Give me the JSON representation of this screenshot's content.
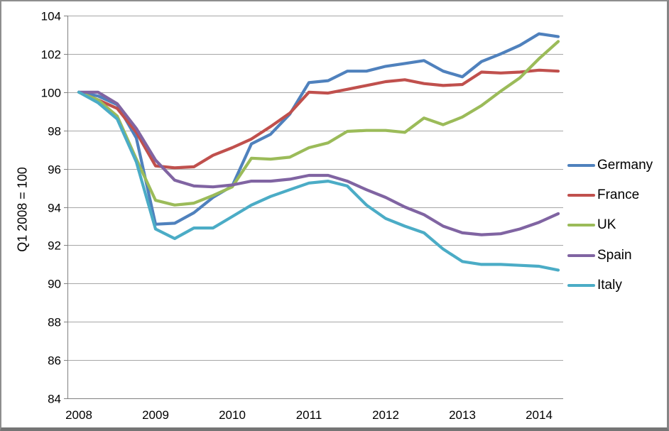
{
  "chart_data": {
    "type": "line",
    "title": "",
    "ylabel": "Q1 2008 = 100",
    "ylim": [
      84,
      104
    ],
    "y_ticks": [
      84,
      86,
      88,
      90,
      92,
      94,
      96,
      98,
      100,
      102,
      104
    ],
    "x_year_labels": [
      "2008",
      "2009",
      "2010",
      "2011",
      "2012",
      "2013",
      "2014"
    ],
    "grid": true,
    "legend_position": "right",
    "categories": [
      "2008 Q1",
      "2008 Q2",
      "2008 Q3",
      "2008 Q4",
      "2009 Q1",
      "2009 Q2",
      "2009 Q3",
      "2009 Q4",
      "2010 Q1",
      "2010 Q2",
      "2010 Q3",
      "2010 Q4",
      "2011 Q1",
      "2011 Q2",
      "2011 Q3",
      "2011 Q4",
      "2012 Q1",
      "2012 Q2",
      "2012 Q3",
      "2012 Q4",
      "2013 Q1",
      "2013 Q2",
      "2013 Q3",
      "2013 Q4",
      "2014 Q1",
      "2014 Q2"
    ],
    "series": [
      {
        "name": "Germany",
        "color": "#4F81BD",
        "values": [
          100,
          99.8,
          99.35,
          97.6,
          93.1,
          93.15,
          93.7,
          94.5,
          95.1,
          97.3,
          97.8,
          98.85,
          100.5,
          100.6,
          101.1,
          101.1,
          101.35,
          101.5,
          101.65,
          101.1,
          100.8,
          101.6,
          102.0,
          102.45,
          103.05,
          102.9
        ]
      },
      {
        "name": "France",
        "color": "#C0504D",
        "values": [
          100,
          99.6,
          99.15,
          97.9,
          96.15,
          96.05,
          96.1,
          96.7,
          97.1,
          97.55,
          98.2,
          98.9,
          100.0,
          99.95,
          100.15,
          100.35,
          100.55,
          100.65,
          100.45,
          100.35,
          100.4,
          101.05,
          101.0,
          101.05,
          101.15,
          101.1
        ]
      },
      {
        "name": "UK",
        "color": "#9BBB59",
        "values": [
          100,
          99.6,
          98.75,
          96.5,
          94.35,
          94.1,
          94.2,
          94.6,
          95.05,
          96.55,
          96.5,
          96.6,
          97.1,
          97.35,
          97.95,
          98.0,
          98.0,
          97.9,
          98.65,
          98.3,
          98.7,
          99.3,
          100.05,
          100.75,
          101.75,
          102.65
        ]
      },
      {
        "name": "Spain",
        "color": "#8064A2",
        "values": [
          100,
          100,
          99.4,
          98.1,
          96.45,
          95.4,
          95.1,
          95.05,
          95.15,
          95.35,
          95.35,
          95.45,
          95.65,
          95.65,
          95.35,
          94.9,
          94.5,
          94.0,
          93.6,
          93.0,
          92.65,
          92.55,
          92.6,
          92.85,
          93.2,
          93.65
        ]
      },
      {
        "name": "Italy",
        "color": "#4BACC6",
        "values": [
          100,
          99.45,
          98.6,
          96.35,
          92.85,
          92.35,
          92.9,
          92.9,
          93.5,
          94.1,
          94.55,
          94.9,
          95.25,
          95.35,
          95.1,
          94.1,
          93.4,
          93.0,
          92.65,
          91.8,
          91.15,
          91.0,
          91.0,
          90.95,
          90.9,
          90.7
        ]
      }
    ]
  },
  "colors": {
    "gridline": "#A6A6A6",
    "axis": "#808080",
    "text": "#000000",
    "background": "#FFFFFF"
  }
}
